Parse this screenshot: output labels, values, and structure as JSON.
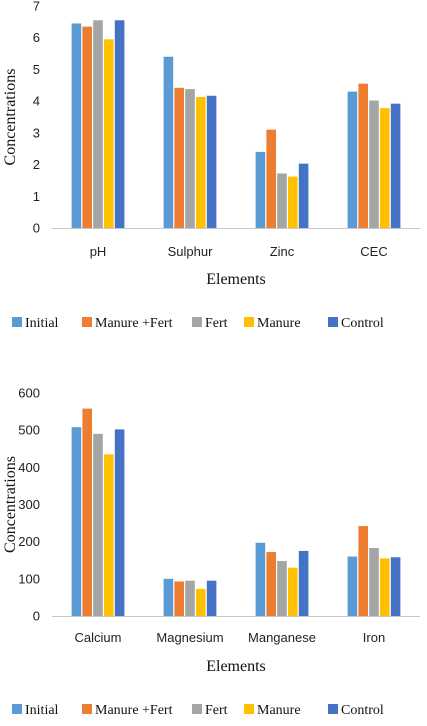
{
  "colors": {
    "Initial": "#5B9BD5",
    "Manure +Fert": "#ED7D31",
    "Fert": "#A5A5A5",
    "Manure": "#FFC000",
    "Control": "#4472C4",
    "axis": "#c8c8c8"
  },
  "chart_data": [
    {
      "type": "bar",
      "categories": [
        "pH",
        "Sulphur",
        "Zinc",
        "CEC"
      ],
      "series": [
        {
          "name": "Initial",
          "values": [
            6.45,
            5.4,
            2.4,
            4.3
          ]
        },
        {
          "name": "Manure +Fert",
          "values": [
            6.35,
            4.42,
            3.1,
            4.55
          ]
        },
        {
          "name": "Fert",
          "values": [
            6.55,
            4.38,
            1.72,
            4.02
          ]
        },
        {
          "name": "Manure",
          "values": [
            5.95,
            4.13,
            1.62,
            3.78
          ]
        },
        {
          "name": "Control",
          "values": [
            6.55,
            4.17,
            2.03,
            3.92
          ]
        }
      ],
      "xlabel": "Elements",
      "ylabel": "Concentrations",
      "ylim": [
        0,
        7
      ],
      "yticks": [
        "0",
        "1",
        "2",
        "3",
        "4",
        "5",
        "6",
        "7"
      ],
      "legend": "bottom",
      "grid": false
    },
    {
      "type": "bar",
      "categories": [
        "Calcium",
        "Magnesium",
        "Manganese",
        "Iron"
      ],
      "series": [
        {
          "name": "Initial",
          "values": [
            508,
            100,
            197,
            160
          ]
        },
        {
          "name": "Manure +Fert",
          "values": [
            558,
            93,
            172,
            242
          ]
        },
        {
          "name": "Fert",
          "values": [
            490,
            95,
            148,
            183
          ]
        },
        {
          "name": "Manure",
          "values": [
            435,
            73,
            130,
            155
          ]
        },
        {
          "name": "Control",
          "values": [
            502,
            95,
            175,
            158
          ]
        }
      ],
      "xlabel": "Elements",
      "ylabel": "Concentrations",
      "ylim": [
        0,
        600
      ],
      "yticks": [
        "0",
        "100",
        "200",
        "300",
        "400",
        "500",
        "600"
      ],
      "legend": "bottom",
      "grid": false
    }
  ]
}
